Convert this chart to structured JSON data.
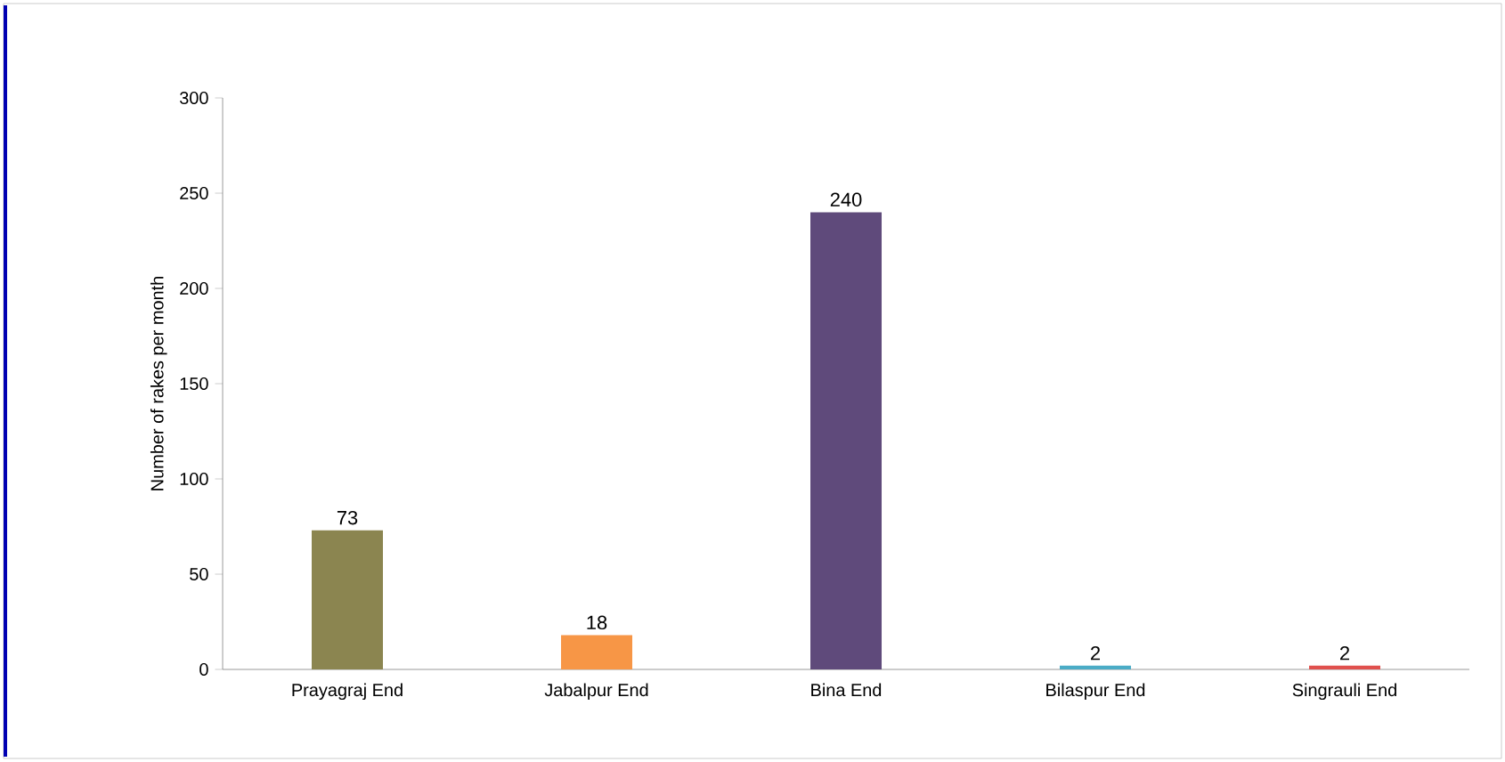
{
  "chart_data": {
    "type": "bar",
    "ylabel": "Number of rakes per month",
    "categories": [
      "Prayagraj End",
      "Jabalpur End",
      "Bina End",
      "Bilaspur End",
      "Singrauli End"
    ],
    "values": [
      73,
      18,
      240,
      2,
      2
    ],
    "colors": [
      "#8b8550",
      "#f79646",
      "#5f4a7b",
      "#4bacc6",
      "#e0504d"
    ],
    "ylim": [
      0,
      300
    ],
    "yticks": [
      0,
      50,
      100,
      150,
      200,
      250,
      300
    ],
    "grid": false,
    "data_labels": true
  }
}
